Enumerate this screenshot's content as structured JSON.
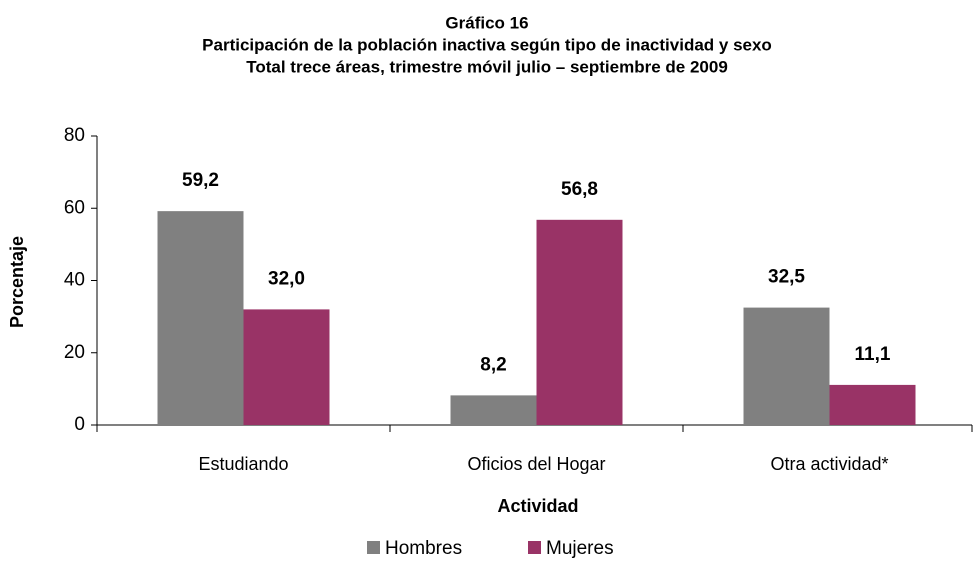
{
  "chart_data": {
    "type": "bar",
    "title": "Gráfico 16",
    "subtitle": [
      "Participación de la población inactiva según tipo de inactividad y sexo",
      "Total trece áreas, trimestre móvil julio – septiembre de 2009"
    ],
    "x_label": "Actividad",
    "y_label": "Porcentaje",
    "categories": [
      "Estudiando",
      "Oficios del Hogar",
      "Otra actividad*"
    ],
    "series": [
      {
        "name": "Hombres",
        "color": "#808080",
        "values": [
          59.2,
          8.2,
          32.5
        ],
        "value_labels": [
          "59,2",
          "8,2",
          "32,5"
        ]
      },
      {
        "name": "Mujeres",
        "color": "#993366",
        "values": [
          32.0,
          56.8,
          11.1
        ],
        "value_labels": [
          "32,0",
          "56,8",
          "11,1"
        ]
      }
    ],
    "ylim": [
      0,
      80
    ],
    "yticks": [
      0,
      20,
      40,
      60,
      80
    ],
    "grid": false,
    "legend": "bottom"
  }
}
